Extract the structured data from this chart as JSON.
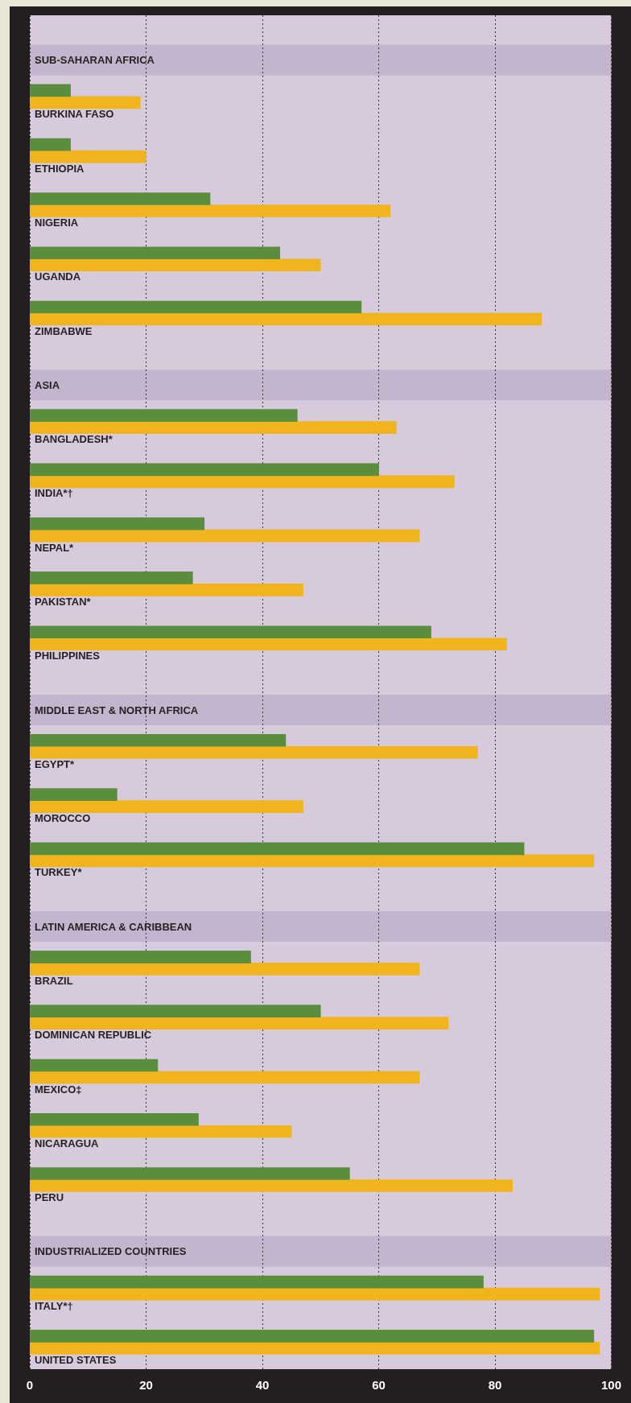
{
  "chart_data": {
    "type": "bar",
    "orientation": "horizontal",
    "categories": [
      "SUB-SAHARAN AFRICA",
      "BURKINA FASO",
      "ETHIOPIA",
      "NIGERIA",
      "UGANDA",
      "ZIMBABWE",
      "ASIA",
      "BANGLADESH*",
      "INDIA*†",
      "NEPAL*",
      "PAKISTAN*",
      "PHILIPPINES",
      "MIDDLE EAST & NORTH AFRICA",
      "EGYPT*",
      "MOROCCO",
      "TURKEY*",
      "LATIN AMERICA & CARIBBEAN",
      "BRAZIL",
      "DOMINICAN REPUBLIC",
      "MEXICO‡",
      "NICARAGUA",
      "PERU",
      "INDUSTRIALIZED COUNTRIES",
      "ITALY*†",
      "UNITED STATES"
    ],
    "series": [
      {
        "color": "#5b8d3e",
        "values": [
          null,
          7,
          7,
          31,
          43,
          57,
          null,
          46,
          60,
          30,
          28,
          69,
          null,
          44,
          15,
          85,
          null,
          38,
          50,
          22,
          29,
          55,
          null,
          78,
          97
        ]
      },
      {
        "color": "#f0b41c",
        "values": [
          null,
          19,
          20,
          62,
          50,
          88,
          null,
          63,
          73,
          67,
          47,
          82,
          null,
          77,
          47,
          97,
          null,
          67,
          72,
          67,
          45,
          83,
          null,
          98,
          98
        ]
      }
    ],
    "bands": [
      {
        "axis": "y",
        "from": "SUB-SAHARAN AFRICA",
        "to": "SUB-SAHARAN AFRICA",
        "color": "#c4b5cf"
      },
      {
        "axis": "y",
        "from": "ASIA",
        "to": "ASIA",
        "color": "#c4b5cf"
      },
      {
        "axis": "y",
        "from": "MIDDLE EAST & NORTH AFRICA",
        "to": "MIDDLE EAST & NORTH AFRICA",
        "color": "#c4b5cf"
      },
      {
        "axis": "y",
        "from": "LATIN AMERICA & CARIBBEAN",
        "to": "LATIN AMERICA & CARIBBEAN",
        "color": "#c4b5cf"
      },
      {
        "axis": "y",
        "from": "INDUSTRIALIZED COUNTRIES",
        "to": "INDUSTRIALIZED COUNTRIES",
        "color": "#c4b5cf"
      }
    ],
    "xlim": [
      0,
      100
    ],
    "xticks": [
      0,
      20,
      40,
      60,
      80,
      100
    ],
    "grid": "x",
    "legend": false
  }
}
